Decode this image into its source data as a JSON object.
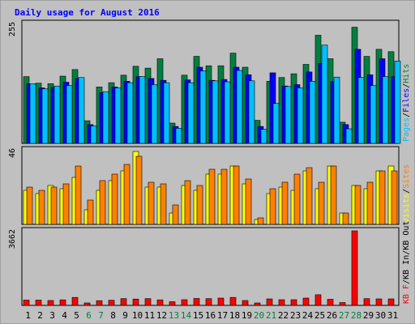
{
  "chart_data": {
    "type": "bar",
    "title": "Daily usage for August 2016",
    "categories": [
      "1",
      "2",
      "3",
      "4",
      "5",
      "6",
      "7",
      "8",
      "9",
      "10",
      "11",
      "12",
      "13",
      "14",
      "15",
      "16",
      "17",
      "18",
      "19",
      "20",
      "21",
      "22",
      "23",
      "24",
      "25",
      "26",
      "27",
      "28",
      "29",
      "30",
      "31"
    ],
    "weekend_days": [
      "6",
      "7",
      "13",
      "14",
      "20",
      "21",
      "27",
      "28"
    ],
    "panels": [
      {
        "id": "hits-files-pages",
        "ymax_label": "255",
        "ylim": [
          0,
          255
        ],
        "legend": [
          "Pages",
          "Files",
          "Hits"
        ],
        "series": [
          {
            "name": "Hits",
            "color": "#008040",
            "values": [
              142,
              128,
              127,
              143,
              157,
              48,
              120,
              129,
              145,
              164,
              160,
              180,
              43,
              145,
              185,
              165,
              165,
              192,
              162,
              49,
              132,
              140,
              148,
              168,
              230,
              180,
              45,
              247,
              185,
              200,
              195
            ]
          },
          {
            "name": "Files",
            "color": "#0000ff",
            "values": [
              127,
              118,
              119,
              130,
              138,
              40,
              108,
              120,
              132,
              142,
              138,
              134,
              36,
              135,
              162,
              134,
              136,
              162,
              146,
              36,
              150,
              122,
              125,
              152,
              170,
              131,
              40,
              200,
              146,
              180,
              142
            ]
          },
          {
            "name": "Pages",
            "color": "#00c0ff",
            "values": [
              127,
              116,
              122,
              123,
              140,
              37,
              110,
              118,
              129,
              142,
              125,
              129,
              32,
              129,
              154,
              133,
              131,
              155,
              133,
              30,
              85,
              121,
              118,
              132,
              209,
              141,
              31,
              140,
              123,
              142,
              175
            ]
          }
        ]
      },
      {
        "id": "visits-sites",
        "ymax_label": "46",
        "ylim": [
          0,
          46
        ],
        "legend": [
          "Visits",
          "Sites"
        ],
        "series": [
          {
            "name": "Visits",
            "color": "#ffff00",
            "values": [
              21,
              19,
              24,
              22,
              29,
              9,
              21,
              27,
              33,
              45,
              23,
              23,
              7,
              24,
              21,
              31,
              31,
              36,
              25,
              3,
              19,
              23,
              21,
              33,
              22,
              36,
              7,
              24,
              22,
              33,
              36
            ]
          },
          {
            "name": "Sites",
            "color": "#ff8000",
            "values": [
              23,
              21,
              23,
              25,
              36,
              15,
              27,
              31,
              37,
              42,
              26,
              25,
              12,
              27,
              24,
              34,
              34,
              36,
              28,
              4,
              22,
              26,
              31,
              35,
              26,
              36,
              7,
              24,
              26,
              33,
              33
            ]
          }
        ]
      },
      {
        "id": "kbytes",
        "ymax_label": "3662",
        "ylim": [
          0,
          3662
        ],
        "legend": [
          "KB F",
          "KB In",
          "KB Out"
        ],
        "series": [
          {
            "name": "KB F",
            "color": "#ff0000",
            "values": [
              260,
              260,
              240,
              270,
              390,
              120,
              230,
              250,
              330,
              310,
              330,
              270,
              180,
              280,
              340,
              330,
              360,
              390,
              240,
              120,
              320,
              280,
              280,
              360,
              520,
              300,
              140,
              3662,
              330,
              320,
              320
            ]
          }
        ]
      }
    ]
  }
}
